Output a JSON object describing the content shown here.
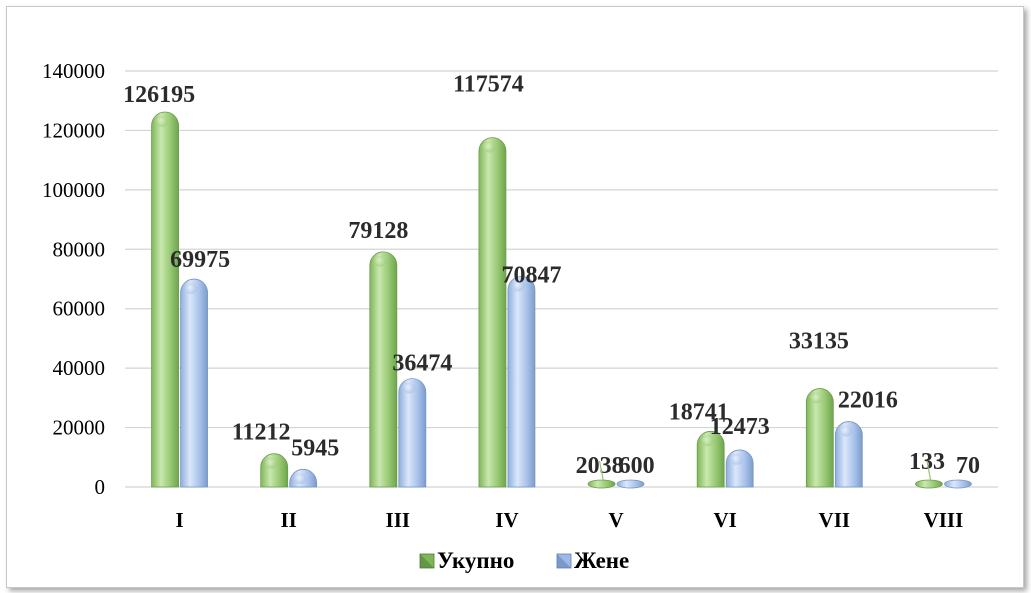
{
  "chart_data": {
    "type": "bar",
    "categories": [
      "I",
      "II",
      "III",
      "IV",
      "V",
      "VI",
      "VII",
      "VIII"
    ],
    "series": [
      {
        "name": "Укупно",
        "values": [
          126195,
          11212,
          79128,
          117574,
          2038,
          18741,
          33135,
          133
        ]
      },
      {
        "name": "Жене",
        "values": [
          69975,
          5945,
          36474,
          70847,
          600,
          12473,
          22016,
          70
        ]
      }
    ],
    "ylim": [
      0,
      140000
    ],
    "yticks": [
      "0",
      "20000",
      "40000",
      "60000",
      "80000",
      "100000",
      "120000",
      "140000"
    ],
    "grid": true,
    "legend_position": "bottom",
    "colors": {
      "series0": "#9bcc78",
      "series1": "#a9c3ec"
    }
  }
}
